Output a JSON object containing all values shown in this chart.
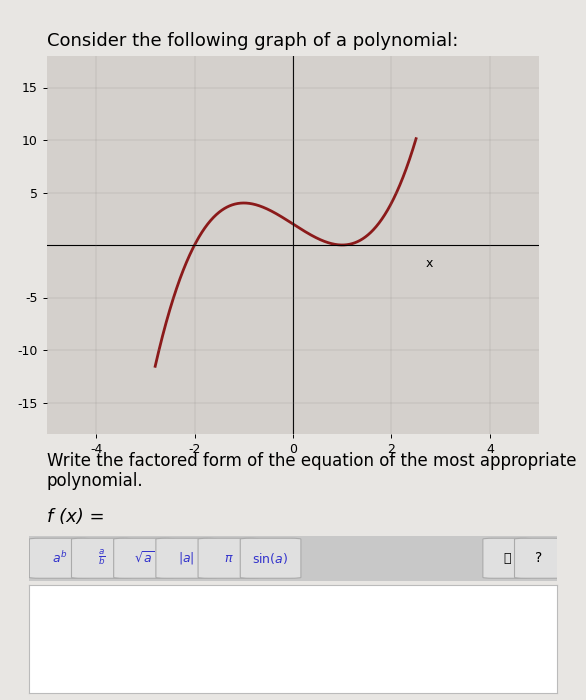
{
  "title": "Consider the following graph of a polynomial:",
  "title_fontsize": 13,
  "bg_color": "#e8e6e3",
  "plot_bg_color": "#d4d0cc",
  "curve_color": "#8b1a1a",
  "curve_linewidth": 2.0,
  "xlim": [
    -5,
    5
  ],
  "ylim": [
    -18,
    18
  ],
  "xticks": [
    -4,
    -2,
    0,
    2,
    4
  ],
  "yticks": [
    -15,
    -10,
    -5,
    5,
    10,
    15
  ],
  "xlabel": "x",
  "ylabel": "",
  "instruction_text": "Write the factored form of the equation of the most appropriate\npolynomial.",
  "fx_label": "f (x) =",
  "instruction_fontsize": 12,
  "fx_fontsize": 13,
  "poly_roots": [
    -2,
    1,
    1
  ],
  "poly_scale": 1.0
}
